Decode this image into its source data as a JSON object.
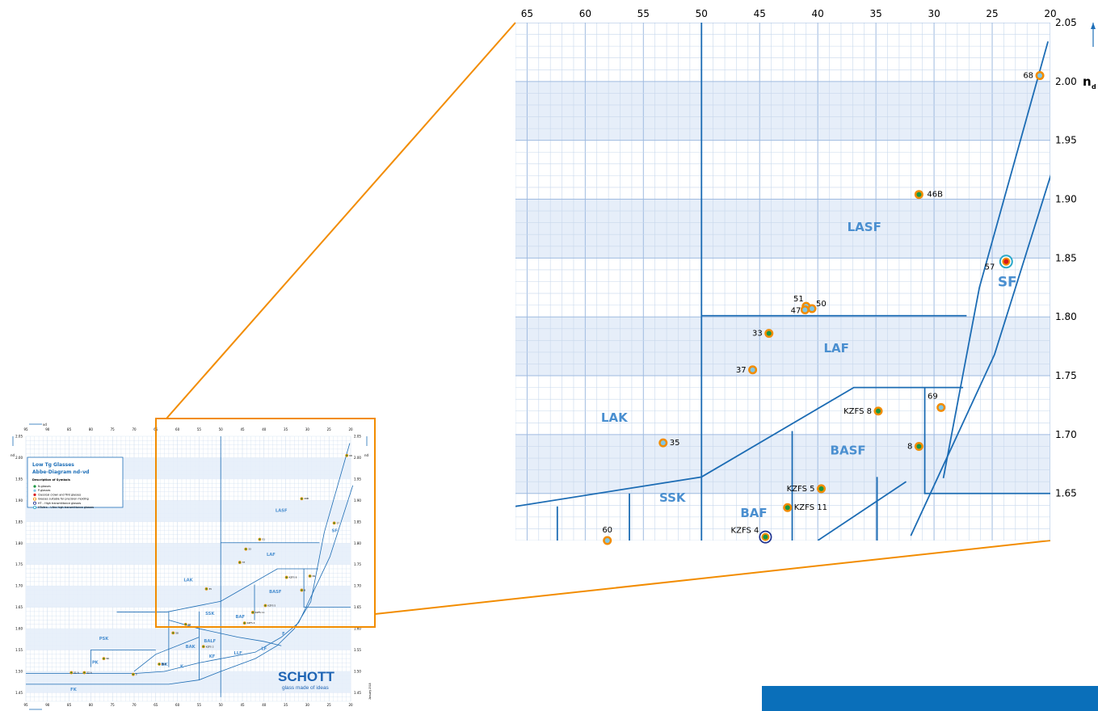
{
  "thumbnail": {
    "legend": {
      "title_line1": "Low Tg Glasses",
      "title_line2": "Abbe-Diagram nd–νd",
      "subtitle": "Description of Symbols",
      "items": [
        {
          "label": "N-glasses",
          "color": "#1a9641"
        },
        {
          "label": "P-glasses",
          "color": "#7fc6e6"
        },
        {
          "label": "Classical crown and flint glasses",
          "color": "#d7191c"
        },
        {
          "label": "Glasses suitable for precision molding",
          "color": "#f28c00"
        },
        {
          "label": "HT – High transmittance glasses",
          "color": "#1c2f8c"
        },
        {
          "label": "HTultra – Ultra high transmittance glasses",
          "color": "#29a8c9"
        }
      ]
    },
    "logo": {
      "brand": "SCHOTT",
      "tagline": "glass made of ideas"
    },
    "date": "January 2018",
    "axis_top_label": "νd",
    "axis_right_label": "nd"
  },
  "colors": {
    "accent_orange": "#f28c00",
    "boundary_blue": "#1c6cb4",
    "band_fill": "#e6eef9",
    "grid": "#c8d8ec",
    "family_label": "#4a8fd0",
    "banner": "#0a6fba"
  },
  "chart_data": [
    {
      "type": "scatter",
      "description": "Abbe diagram (zoomed inset)",
      "x_axis": {
        "label": "νd",
        "range": [
          66,
          20
        ],
        "ticks": [
          65,
          60,
          55,
          50,
          45,
          40,
          35,
          30,
          25,
          20
        ],
        "reversed": true
      },
      "y_axis": {
        "label": "nd",
        "range": [
          1.61,
          2.05
        ],
        "ticks": [
          1.65,
          1.7,
          1.75,
          1.8,
          1.85,
          1.9,
          1.95,
          2.0,
          2.05
        ]
      },
      "family_labels": [
        "LASF",
        "LAF",
        "LAK",
        "BASF",
        "SSK",
        "BAF",
        "SF"
      ],
      "points": [
        {
          "label": "68",
          "x": 20.9,
          "y": 2.005,
          "ring": "orange",
          "core": "p-glass"
        },
        {
          "label": "46B",
          "x": 31.3,
          "y": 1.904,
          "ring": "orange",
          "core": "n-glass"
        },
        {
          "label": "57",
          "x": 23.8,
          "y": 1.847,
          "ring": "htultra",
          "core": "classical"
        },
        {
          "label": "51",
          "x": 41.0,
          "y": 1.809,
          "ring": "orange",
          "core": "p-glass"
        },
        {
          "label": "50",
          "x": 40.5,
          "y": 1.807,
          "ring": "orange",
          "core": "p-glass"
        },
        {
          "label": "47",
          "x": 41.1,
          "y": 1.806,
          "ring": "orange",
          "core": "p-glass"
        },
        {
          "label": "33",
          "x": 44.2,
          "y": 1.786,
          "ring": "orange",
          "core": "n-glass"
        },
        {
          "label": "37",
          "x": 45.6,
          "y": 1.755,
          "ring": "orange",
          "core": "p-glass"
        },
        {
          "label": "KZFS 8",
          "x": 34.8,
          "y": 1.72,
          "ring": "orange",
          "core": "n-glass"
        },
        {
          "label": "69",
          "x": 29.4,
          "y": 1.723,
          "ring": "orange",
          "core": "p-glass"
        },
        {
          "label": "35",
          "x": 53.3,
          "y": 1.693,
          "ring": "orange",
          "core": "p-glass"
        },
        {
          "label": "8",
          "x": 31.3,
          "y": 1.69,
          "ring": "orange",
          "core": "n-glass"
        },
        {
          "label": "KZFS 5",
          "x": 39.7,
          "y": 1.654,
          "ring": "orange",
          "core": "n-glass"
        },
        {
          "label": "KZFS 11",
          "x": 42.6,
          "y": 1.638,
          "ring": "orange",
          "core": "n-glass"
        },
        {
          "label": "KZFS 4",
          "x": 44.5,
          "y": 1.613,
          "ring": "ht",
          "core": "n-glass"
        },
        {
          "label": "60",
          "x": 58.1,
          "y": 1.61,
          "ring": "orange",
          "core": "p-glass"
        }
      ],
      "grid": true
    },
    {
      "type": "scatter",
      "description": "Abbe diagram (full thumbnail)",
      "x_axis": {
        "label": "νd",
        "range": [
          95,
          20
        ],
        "ticks": [
          95,
          90,
          85,
          80,
          75,
          70,
          65,
          60,
          55,
          50,
          45,
          40,
          35,
          30,
          25,
          20
        ],
        "reversed": true
      },
      "y_axis": {
        "label": "nd",
        "range": [
          1.43,
          2.05
        ],
        "ticks": [
          1.45,
          1.5,
          1.55,
          1.6,
          1.65,
          1.7,
          1.75,
          1.8,
          1.85,
          1.9,
          1.95,
          2.0,
          2.05
        ]
      },
      "family_labels": [
        "LASF",
        "LAF",
        "LAK",
        "BASF",
        "SSK",
        "BAF",
        "SF",
        "PSK",
        "PK",
        "FK",
        "BK",
        "BAK",
        "BALF",
        "K",
        "KF",
        "LLF",
        "LF",
        "F"
      ],
      "points": [
        {
          "label": "68",
          "x": 20.9,
          "y": 2.005
        },
        {
          "label": "46B",
          "x": 31.3,
          "y": 1.904
        },
        {
          "label": "57",
          "x": 23.8,
          "y": 1.847
        },
        {
          "label": "51",
          "x": 41.0,
          "y": 1.809
        },
        {
          "label": "33",
          "x": 44.2,
          "y": 1.786
        },
        {
          "label": "37",
          "x": 45.6,
          "y": 1.755
        },
        {
          "label": "KZFS 8",
          "x": 34.8,
          "y": 1.72
        },
        {
          "label": "69",
          "x": 29.4,
          "y": 1.723
        },
        {
          "label": "35",
          "x": 53.3,
          "y": 1.693
        },
        {
          "label": "8",
          "x": 31.3,
          "y": 1.69
        },
        {
          "label": "KZFS 5",
          "x": 39.7,
          "y": 1.654
        },
        {
          "label": "KZFS 11",
          "x": 42.6,
          "y": 1.638
        },
        {
          "label": "KZFS 4",
          "x": 44.5,
          "y": 1.613
        },
        {
          "label": "60",
          "x": 58.1,
          "y": 1.61
        },
        {
          "label": "58",
          "x": 61.0,
          "y": 1.59
        },
        {
          "label": "KZFS 2",
          "x": 54.0,
          "y": 1.558
        },
        {
          "label": "SK",
          "x": 77.0,
          "y": 1.53
        },
        {
          "label": "52 A",
          "x": 81.5,
          "y": 1.497
        },
        {
          "label": "51 A",
          "x": 84.5,
          "y": 1.497
        },
        {
          "label": "5",
          "x": 70.2,
          "y": 1.493
        },
        {
          "label": "BK7",
          "x": 64.2,
          "y": 1.517
        }
      ]
    }
  ]
}
